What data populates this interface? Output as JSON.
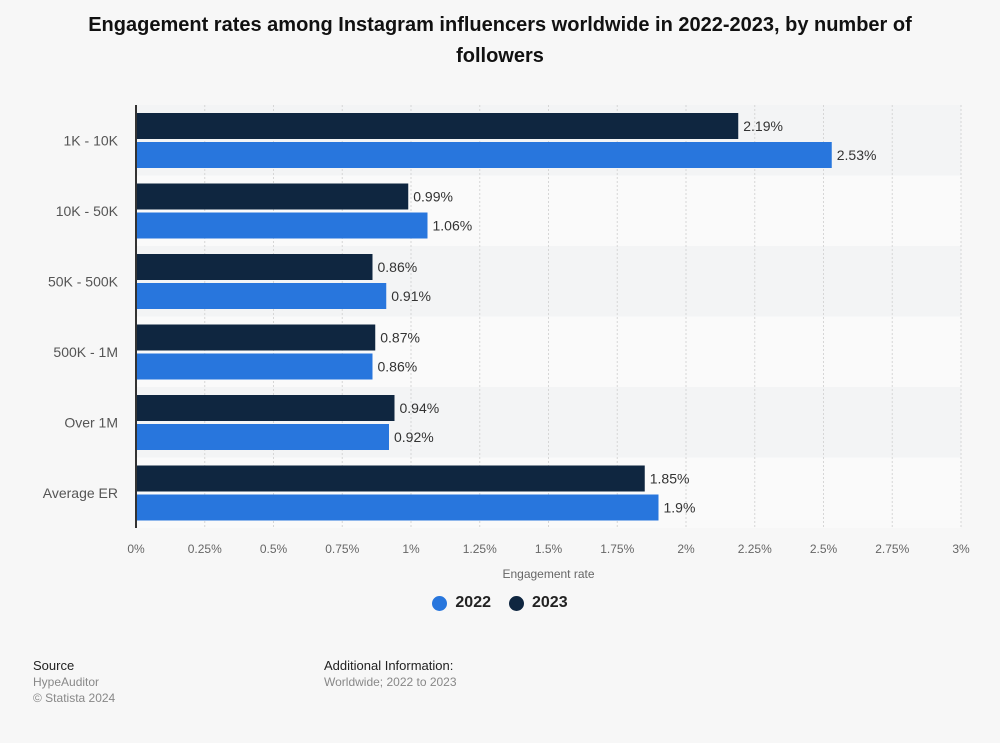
{
  "chart_data": {
    "type": "bar",
    "orientation": "horizontal",
    "title": "Engagement rates among Instagram influencers worldwide in 2022-2023, by number of followers",
    "xlabel": "Engagement rate",
    "ylabel": "",
    "xlim": [
      0,
      3
    ],
    "x_ticks": [
      "0%",
      "0.25%",
      "0.5%",
      "0.75%",
      "1%",
      "1.25%",
      "1.5%",
      "1.75%",
      "2%",
      "2.25%",
      "2.5%",
      "2.75%",
      "3%"
    ],
    "grid": true,
    "legend_placement": "bottom",
    "categories": [
      "1K - 10K",
      "10K - 50K",
      "50K - 500K",
      "500K - 1M",
      "Over 1M",
      "Average ER"
    ],
    "series": [
      {
        "name": "2023",
        "color": "#0f2640",
        "values": [
          2.19,
          0.99,
          0.86,
          0.87,
          0.94,
          1.85
        ],
        "labels": [
          "2.19%",
          "0.99%",
          "0.86%",
          "0.87%",
          "0.94%",
          "1.85%"
        ]
      },
      {
        "name": "2022",
        "color": "#2876dd",
        "values": [
          2.53,
          1.06,
          0.91,
          0.86,
          0.92,
          1.9
        ],
        "labels": [
          "2.53%",
          "1.06%",
          "0.91%",
          "0.86%",
          "0.92%",
          "1.9%"
        ]
      }
    ],
    "legend": [
      {
        "name": "2022",
        "color": "#2876dd"
      },
      {
        "name": "2023",
        "color": "#0f2640"
      }
    ]
  },
  "footer": {
    "source_heading": "Source",
    "source": "HypeAuditor",
    "copyright": "© Statista 2024",
    "info_heading": "Additional Information:",
    "info": "Worldwide; 2022 to 2023"
  }
}
